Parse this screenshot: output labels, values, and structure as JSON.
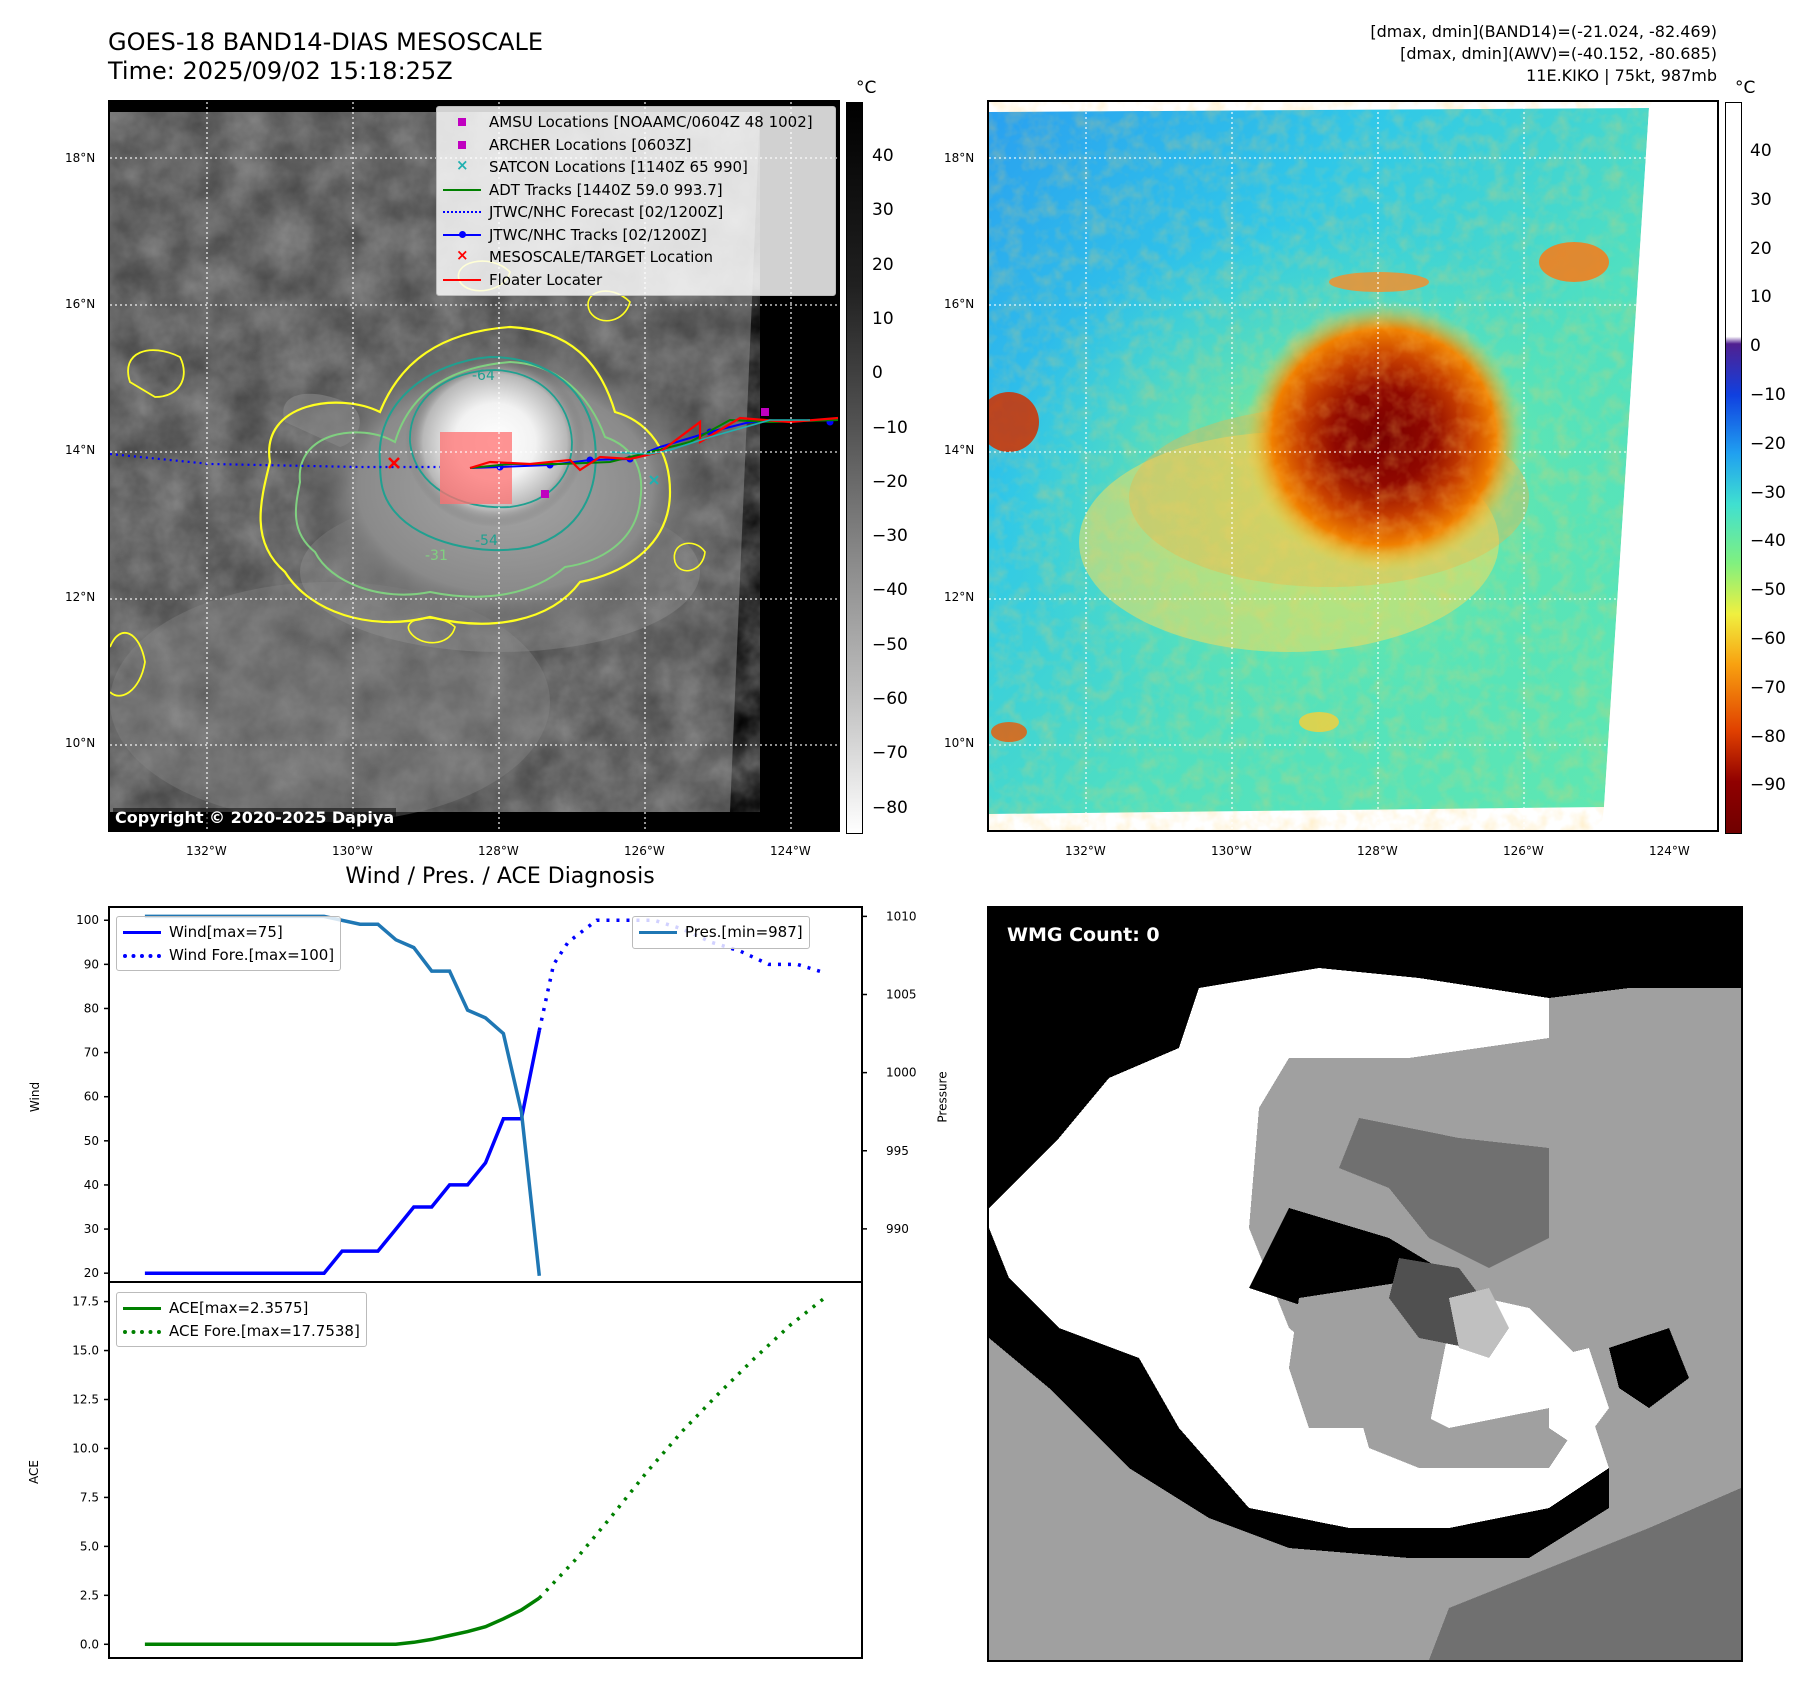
{
  "header": {
    "title_line1": "GOES-18 BAND14-DIAS MESOSCALE",
    "title_line2": "Time: 2025/09/02 15:18:25Z",
    "info_line1": "[dmax, dmin](BAND14)=(-21.024, -82.469)",
    "info_line2": "[dmax, dmin](AWV)=(-40.152, -80.685)",
    "info_line3": "11E.KIKO | 75kt, 987mb"
  },
  "map_panel": {
    "lat_ticks": [
      "18°N",
      "16°N",
      "14°N",
      "12°N",
      "10°N"
    ],
    "lon_ticks": [
      "132°W",
      "130°W",
      "128°W",
      "126°W",
      "124°W"
    ],
    "copyright": "Copyright © 2020-2025 Dapiya",
    "contour_labels": [
      "-64",
      "-54",
      "-31"
    ],
    "legend": [
      {
        "label": "AMSU Locations [NOAAMC/0604Z 48 1002]",
        "color": "#c000c0",
        "kind": "square"
      },
      {
        "label": "ARCHER Locations [0603Z]",
        "color": "#c000c0",
        "kind": "square"
      },
      {
        "label": "SATCON Locations [1140Z 65 990]",
        "color": "#20b0b0",
        "kind": "x"
      },
      {
        "label": "ADT Tracks [1440Z 59.0 993.7]",
        "color": "#008000",
        "kind": "line"
      },
      {
        "label": "JTWC/NHC Forecast [02/1200Z]",
        "color": "#0000ff",
        "kind": "dotted"
      },
      {
        "label": "JTWC/NHC Tracks [02/1200Z]",
        "color": "#0000ff",
        "kind": "linedot"
      },
      {
        "label": "MESOSCALE/TARGET Location",
        "color": "#ff0000",
        "kind": "x"
      },
      {
        "label": "Floater Locater",
        "color": "#ff0000",
        "kind": "line"
      }
    ]
  },
  "colorbar_left": {
    "unit": "°C",
    "ticks": [
      "40",
      "30",
      "20",
      "10",
      "0",
      "−10",
      "−20",
      "−30",
      "−40",
      "−50",
      "−60",
      "−70",
      "−80"
    ]
  },
  "colorbar_right": {
    "unit": "°C",
    "ticks": [
      "40",
      "30",
      "20",
      "10",
      "0",
      "−10",
      "−20",
      "−30",
      "−40",
      "−50",
      "−60",
      "−70",
      "−80",
      "−90"
    ]
  },
  "wind_panel": {
    "title": "Wind / Pres. / ACE Diagnosis",
    "ylabel_left": "Wind",
    "ylabel_right": "Pressure",
    "legend_wind": "Wind[max=75]",
    "legend_wind_fore": "Wind Fore.[max=100]",
    "legend_pres": "Pres.[min=987]"
  },
  "ace_panel": {
    "ylabel": "ACE",
    "legend_ace": "ACE[max=2.3575]",
    "legend_ace_fore": "ACE Fore.[max=17.7538]"
  },
  "wmg_panel": {
    "label": "WMG Count: 0"
  },
  "chart_data": [
    {
      "type": "line",
      "name": "wind",
      "ylabel": "Wind",
      "ylim": [
        18,
        103
      ],
      "xlim": [
        0,
        21
      ],
      "yticks": [
        20,
        30,
        40,
        50,
        60,
        70,
        80,
        90,
        100
      ],
      "series": [
        {
          "name": "Wind[max=75]",
          "color": "#0000ff",
          "style": "solid",
          "x": [
            1,
            2,
            3,
            4,
            5,
            6,
            6.5,
            7,
            7.5,
            8,
            8.5,
            9,
            9.5,
            10,
            10.5,
            11,
            11.5,
            12
          ],
          "values": [
            20,
            20,
            20,
            20,
            20,
            20,
            25,
            25,
            25,
            30,
            35,
            35,
            40,
            40,
            45,
            55,
            55,
            75
          ]
        },
        {
          "name": "Wind Fore.[max=100]",
          "color": "#0000ff",
          "style": "dotted",
          "x": [
            12,
            12.4,
            12.8,
            13.6,
            14.4,
            15.2,
            16,
            16.8,
            17.6,
            18.4,
            19.2,
            20
          ],
          "values": [
            75,
            90,
            95,
            100,
            100,
            100,
            98,
            95,
            93,
            90,
            90,
            88
          ]
        },
        {
          "name": "Pres.[min=987]",
          "color": "#1f77b4",
          "style": "solid",
          "axis": "right",
          "x": [
            1,
            2,
            3,
            4,
            5,
            6,
            7,
            7.5,
            8,
            8.5,
            9,
            9.5,
            10,
            10.5,
            11,
            11.5,
            12
          ],
          "values": [
            1010,
            1010,
            1010,
            1010,
            1010,
            1010,
            1009.5,
            1009.5,
            1008.5,
            1008,
            1006.5,
            1006.5,
            1004,
            1003.5,
            1002.5,
            997.5,
            987
          ]
        }
      ],
      "y2lim": [
        986.6,
        1010.6
      ],
      "y2ticks": [
        990,
        995,
        1000,
        1005,
        1010
      ]
    },
    {
      "type": "line",
      "name": "ace",
      "ylabel": "ACE",
      "ylim": [
        -0.7,
        18.5
      ],
      "xlim": [
        0,
        21
      ],
      "yticks": [
        0.0,
        2.5,
        5.0,
        7.5,
        10.0,
        12.5,
        15.0,
        17.5
      ],
      "series": [
        {
          "name": "ACE[max=2.3575]",
          "color": "#008000",
          "style": "solid",
          "x": [
            1,
            2,
            3,
            4,
            5,
            6,
            7,
            8,
            8.5,
            9,
            9.5,
            10,
            10.5,
            11,
            11.5,
            12
          ],
          "values": [
            0,
            0,
            0,
            0,
            0,
            0,
            0,
            0,
            0.1,
            0.25,
            0.45,
            0.65,
            0.9,
            1.3,
            1.75,
            2.36
          ]
        },
        {
          "name": "ACE Fore.[max=17.7538]",
          "color": "#008000",
          "style": "dotted",
          "x": [
            12,
            13,
            14,
            15,
            16,
            17,
            18,
            19,
            20
          ],
          "values": [
            2.36,
            4.3,
            6.5,
            8.8,
            10.9,
            12.8,
            14.6,
            16.3,
            17.75
          ]
        }
      ]
    }
  ]
}
